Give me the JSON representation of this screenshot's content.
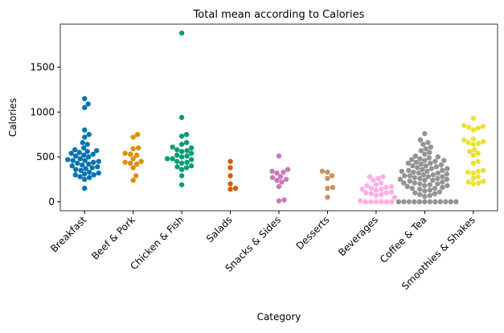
{
  "chart_data": {
    "type": "swarm",
    "title": "Total mean according to Calories",
    "x_label": "Category",
    "y_label": "Calories",
    "categories": [
      "Breakfast",
      "Beef & Pork",
      "Chicken & Fish",
      "Salads",
      "Snacks & Sides",
      "Desserts",
      "Beverages",
      "Coffee & Tea",
      "Smoothies & Shakes"
    ],
    "colors": [
      "#0173b2",
      "#de8f05",
      "#029e73",
      "#d55e00",
      "#cc78bc",
      "#ca9161",
      "#fbafe4",
      "#949494",
      "#ece133"
    ],
    "values": [
      [
        150,
        250,
        270,
        280,
        300,
        300,
        310,
        320,
        330,
        350,
        360,
        370,
        380,
        390,
        400,
        410,
        420,
        430,
        440,
        450,
        460,
        460,
        470,
        480,
        500,
        510,
        520,
        530,
        540,
        550,
        560,
        570,
        580,
        600,
        640,
        660,
        720,
        750,
        800,
        1050,
        1090,
        1150
      ],
      [
        240,
        290,
        380,
        420,
        430,
        440,
        450,
        480,
        520,
        530,
        540,
        590,
        600,
        720,
        750
      ],
      [
        190,
        290,
        360,
        380,
        390,
        400,
        430,
        440,
        450,
        470,
        480,
        480,
        500,
        510,
        520,
        540,
        560,
        570,
        580,
        600,
        610,
        640,
        660,
        730,
        750,
        940,
        1880
      ],
      [
        140,
        150,
        200,
        290,
        380,
        450
      ],
      [
        10,
        20,
        170,
        220,
        240,
        250,
        270,
        280,
        320,
        330,
        340,
        360,
        510
      ],
      [
        50,
        150,
        160,
        260,
        290,
        330,
        340
      ],
      [
        0,
        0,
        0,
        0,
        0,
        0,
        10,
        50,
        70,
        80,
        90,
        100,
        100,
        110,
        130,
        140,
        140,
        150,
        160,
        170,
        180,
        190,
        210,
        240,
        260,
        280,
        280
      ],
      [
        0,
        0,
        0,
        0,
        0,
        0,
        0,
        0,
        0,
        0,
        0,
        0,
        60,
        70,
        80,
        90,
        100,
        110,
        120,
        130,
        140,
        150,
        160,
        170,
        180,
        190,
        200,
        200,
        210,
        220,
        230,
        240,
        250,
        250,
        260,
        270,
        280,
        290,
        290,
        300,
        310,
        320,
        330,
        340,
        350,
        350,
        360,
        370,
        380,
        390,
        400,
        410,
        420,
        430,
        440,
        450,
        460,
        470,
        480,
        490,
        500,
        510,
        530,
        550,
        570,
        590,
        610,
        640,
        660,
        690,
        760,
        150,
        180,
        210,
        240,
        260,
        280,
        300,
        320,
        340,
        370,
        400,
        430,
        460
      ],
      [
        200,
        210,
        220,
        230,
        260,
        280,
        320,
        330,
        340,
        350,
        430,
        450,
        520,
        540,
        560,
        580,
        640,
        650,
        660,
        670,
        690,
        700,
        800,
        820,
        830,
        840,
        850,
        930
      ]
    ],
    "ylim": [
      -100,
      1980
    ],
    "yticks": [
      0,
      500,
      1000,
      1500
    ]
  }
}
